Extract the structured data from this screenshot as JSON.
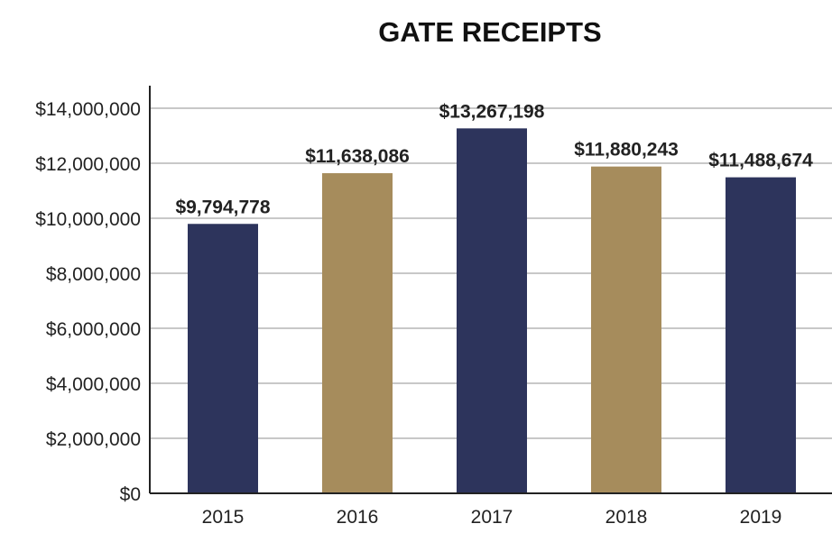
{
  "chart_data": {
    "type": "bar",
    "title": "GATE RECEIPTS",
    "xlabel": "",
    "ylabel": "",
    "categories": [
      "2015",
      "2016",
      "2017",
      "2018",
      "2019"
    ],
    "values": [
      9794778,
      11638086,
      13267198,
      11880243,
      11488674
    ],
    "data_labels": [
      "$9,794,778",
      "$11,638,086",
      "$13,267,198",
      "$11,880,243",
      "$11,488,674"
    ],
    "ylim": [
      0,
      14000000
    ],
    "yticks": [
      0,
      2000000,
      4000000,
      6000000,
      8000000,
      10000000,
      12000000,
      14000000
    ],
    "ytick_labels": [
      "$0",
      "$2,000,000",
      "$4,000,000",
      "$6,000,000",
      "$8,000,000",
      "$10,000,000",
      "$12,000,000",
      "$14,000,000"
    ],
    "grid": true,
    "legend": "none",
    "bar_colors": [
      "#2d345c",
      "#a68c5c",
      "#2d345c",
      "#a68c5c",
      "#2d345c"
    ]
  }
}
